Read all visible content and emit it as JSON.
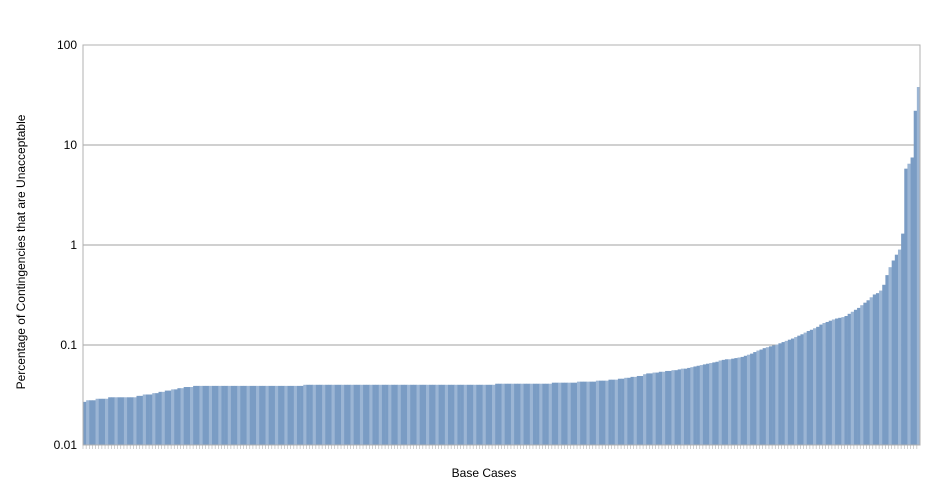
{
  "chart_data": {
    "type": "bar",
    "title": "",
    "xlabel": "Base Cases",
    "ylabel": "Percentage of Contingencies that are Unacceptable",
    "yscale": "log",
    "ylim": [
      0.01,
      100
    ],
    "yticks": [
      {
        "value": 0.01,
        "label": "0.01"
      },
      {
        "value": 0.1,
        "label": "0.1"
      },
      {
        "value": 1,
        "label": "1"
      },
      {
        "value": 10,
        "label": "10"
      },
      {
        "value": 100,
        "label": "100"
      }
    ],
    "grid": true,
    "legend": "none",
    "bar_color": "#7a9cc4",
    "bar_color_light": "#9bb5d4",
    "grid_color": "#a0a0a0",
    "border_color": "#b0b0b0",
    "values": [
      0.027,
      0.028,
      0.028,
      0.028,
      0.029,
      0.029,
      0.029,
      0.029,
      0.03,
      0.03,
      0.03,
      0.03,
      0.03,
      0.03,
      0.03,
      0.03,
      0.03,
      0.031,
      0.031,
      0.032,
      0.032,
      0.032,
      0.033,
      0.033,
      0.034,
      0.034,
      0.035,
      0.035,
      0.036,
      0.036,
      0.037,
      0.037,
      0.038,
      0.038,
      0.038,
      0.039,
      0.039,
      0.039,
      0.039,
      0.039,
      0.039,
      0.039,
      0.039,
      0.039,
      0.039,
      0.039,
      0.039,
      0.039,
      0.039,
      0.039,
      0.039,
      0.039,
      0.039,
      0.039,
      0.039,
      0.039,
      0.039,
      0.039,
      0.039,
      0.039,
      0.039,
      0.039,
      0.039,
      0.039,
      0.039,
      0.039,
      0.039,
      0.039,
      0.039,
      0.039,
      0.04,
      0.04,
      0.04,
      0.04,
      0.04,
      0.04,
      0.04,
      0.04,
      0.04,
      0.04,
      0.04,
      0.04,
      0.04,
      0.04,
      0.04,
      0.04,
      0.04,
      0.04,
      0.04,
      0.04,
      0.04,
      0.04,
      0.04,
      0.04,
      0.04,
      0.04,
      0.04,
      0.04,
      0.04,
      0.04,
      0.04,
      0.04,
      0.04,
      0.04,
      0.04,
      0.04,
      0.04,
      0.04,
      0.04,
      0.04,
      0.04,
      0.04,
      0.04,
      0.04,
      0.04,
      0.04,
      0.04,
      0.04,
      0.04,
      0.04,
      0.04,
      0.04,
      0.04,
      0.04,
      0.04,
      0.04,
      0.04,
      0.04,
      0.04,
      0.04,
      0.04,
      0.041,
      0.041,
      0.041,
      0.041,
      0.041,
      0.041,
      0.041,
      0.041,
      0.041,
      0.041,
      0.041,
      0.041,
      0.041,
      0.041,
      0.041,
      0.041,
      0.041,
      0.041,
      0.042,
      0.042,
      0.042,
      0.042,
      0.042,
      0.042,
      0.042,
      0.042,
      0.043,
      0.043,
      0.043,
      0.043,
      0.043,
      0.043,
      0.044,
      0.044,
      0.044,
      0.044,
      0.045,
      0.045,
      0.045,
      0.046,
      0.046,
      0.047,
      0.047,
      0.048,
      0.048,
      0.049,
      0.049,
      0.051,
      0.052,
      0.052,
      0.053,
      0.053,
      0.054,
      0.054,
      0.055,
      0.055,
      0.056,
      0.056,
      0.057,
      0.058,
      0.058,
      0.059,
      0.06,
      0.061,
      0.062,
      0.063,
      0.064,
      0.065,
      0.066,
      0.067,
      0.068,
      0.07,
      0.071,
      0.072,
      0.072,
      0.073,
      0.074,
      0.075,
      0.076,
      0.078,
      0.08,
      0.082,
      0.085,
      0.088,
      0.09,
      0.093,
      0.095,
      0.097,
      0.099,
      0.101,
      0.104,
      0.107,
      0.11,
      0.113,
      0.116,
      0.12,
      0.124,
      0.128,
      0.133,
      0.138,
      0.142,
      0.147,
      0.152,
      0.16,
      0.166,
      0.17,
      0.175,
      0.18,
      0.184,
      0.187,
      0.19,
      0.195,
      0.205,
      0.215,
      0.225,
      0.235,
      0.25,
      0.265,
      0.28,
      0.3,
      0.32,
      0.33,
      0.35,
      0.4,
      0.5,
      0.6,
      0.7,
      0.8,
      0.9,
      1.3,
      5.8,
      6.5,
      7.5,
      22.0,
      38.0
    ]
  }
}
